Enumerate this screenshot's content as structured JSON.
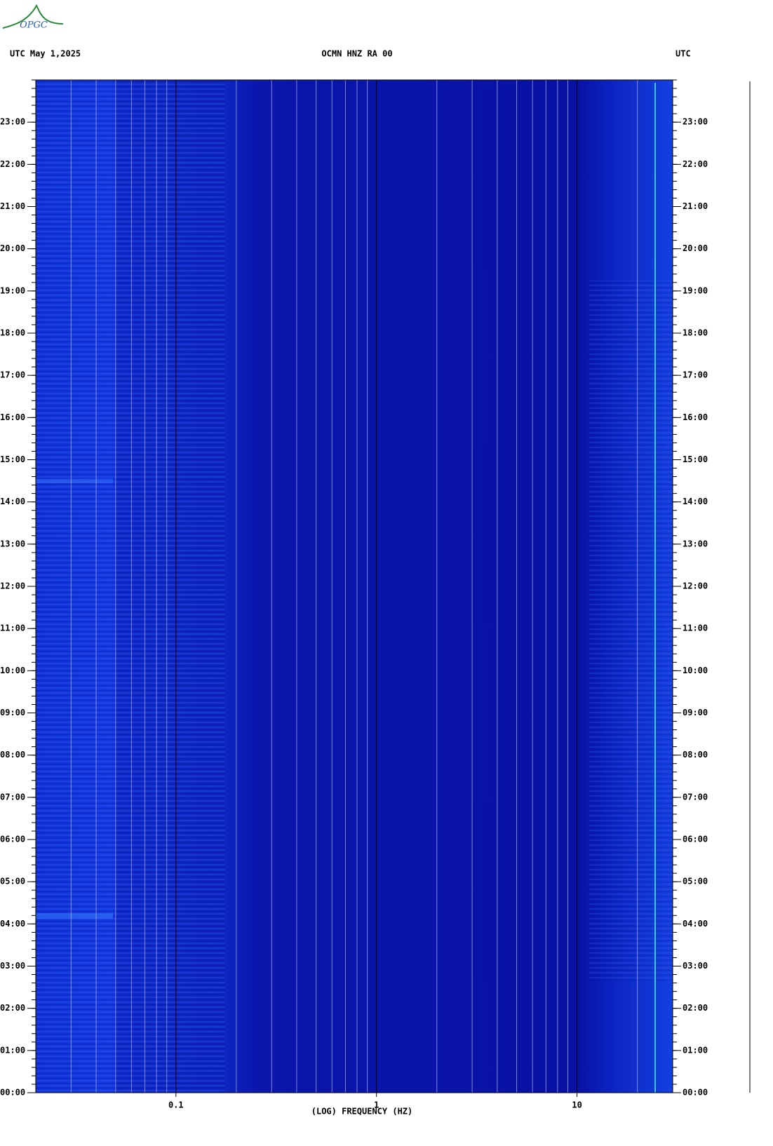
{
  "chart_data": {
    "type": "spectrogram",
    "logo": "OPGC",
    "header_left": "UTC  May 1,2025",
    "title": "OCMN HNZ RA 00",
    "header_right": "UTC",
    "x_label": "(LOG) FREQUENCY (HZ)",
    "x_log": true,
    "xlim": [
      0.02,
      30
    ],
    "xticks": [
      0.1,
      1,
      10
    ],
    "xgrid": [
      0.03,
      0.04,
      0.05,
      0.06,
      0.07,
      0.08,
      0.09,
      0.2,
      0.3,
      0.4,
      0.5,
      0.6,
      0.7,
      0.8,
      0.9,
      2,
      3,
      4,
      5,
      6,
      7,
      8,
      9,
      20
    ],
    "ylim": [
      0,
      24
    ],
    "yticks": [
      {
        "value": 0,
        "label": "00:00"
      },
      {
        "value": 1,
        "label": "01:00"
      },
      {
        "value": 2,
        "label": "02:00"
      },
      {
        "value": 3,
        "label": "03:00"
      },
      {
        "value": 4,
        "label": "04:00"
      },
      {
        "value": 5,
        "label": "05:00"
      },
      {
        "value": 6,
        "label": "06:00"
      },
      {
        "value": 7,
        "label": "07:00"
      },
      {
        "value": 8,
        "label": "08:00"
      },
      {
        "value": 9,
        "label": "09:00"
      },
      {
        "value": 10,
        "label": "10:00"
      },
      {
        "value": 11,
        "label": "11:00"
      },
      {
        "value": 12,
        "label": "12:00"
      },
      {
        "value": 13,
        "label": "13:00"
      },
      {
        "value": 14,
        "label": "14:00"
      },
      {
        "value": 15,
        "label": "15:00"
      },
      {
        "value": 16,
        "label": "16:00"
      },
      {
        "value": 17,
        "label": "17:00"
      },
      {
        "value": 18,
        "label": "18:00"
      },
      {
        "value": 19,
        "label": "19:00"
      },
      {
        "value": 20,
        "label": "20:00"
      },
      {
        "value": 21,
        "label": "21:00"
      },
      {
        "value": 22,
        "label": "22:00"
      },
      {
        "value": 23,
        "label": "23:00"
      }
    ]
  }
}
